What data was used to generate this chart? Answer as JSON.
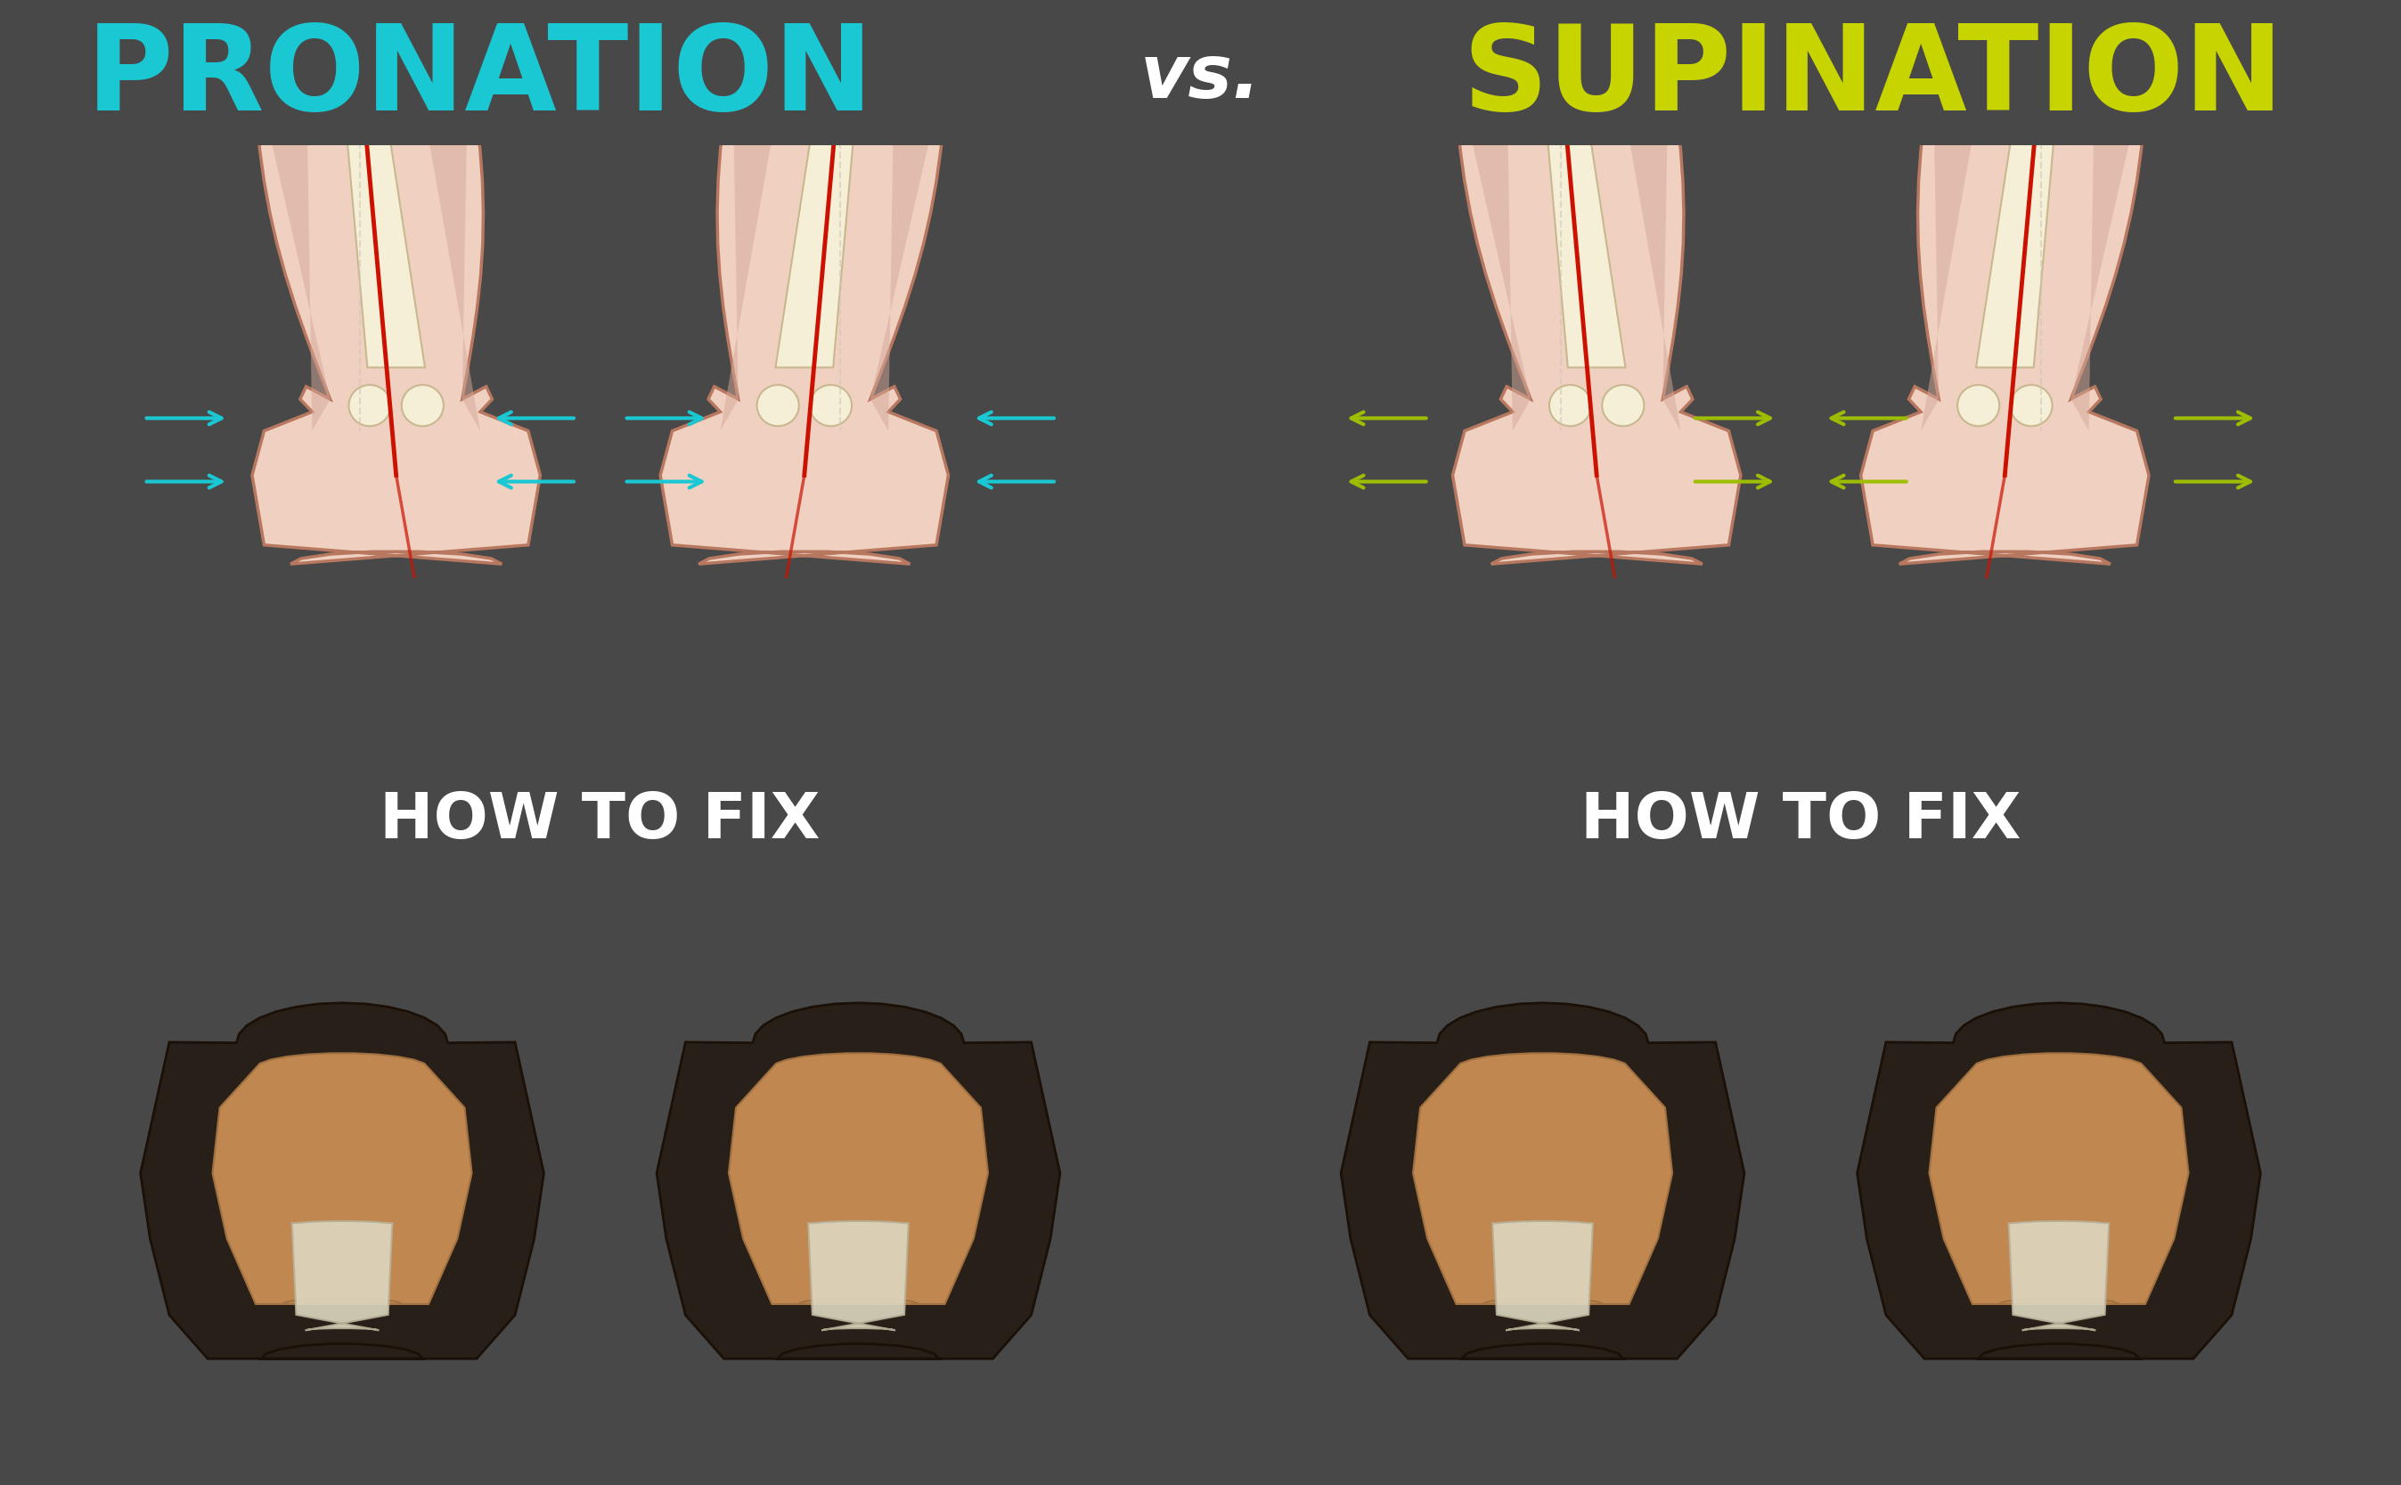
{
  "title_left": "PRONATION",
  "title_vs": "vs.",
  "title_right": "SUPINATION",
  "title_left_color": "#1ac8d4",
  "title_right_color": "#c8d400",
  "title_vs_color": "#ffffff",
  "header_bg": "#484848",
  "left_bg": "#e5e2dc",
  "right_bg": "#ffffff",
  "banner_left_color": "#1ac8d4",
  "banner_right_color": "#c8d400",
  "banner_text": "HOW TO FIX",
  "banner_text_color": "#ffffff",
  "arrow_left_color": "#1ac8d4",
  "arrow_right_color": "#9cbd00",
  "skin_base": "#f0d0c0",
  "skin_shadow": "#d4a898",
  "skin_outline": "#b87860",
  "bone_color": "#f5efd8",
  "bone_outline": "#c8b890",
  "ankle_bump": "#e8c8b8",
  "red_line": "#cc1100",
  "heel_bg": "#e8c8b0",
  "divider_color": "#888888"
}
